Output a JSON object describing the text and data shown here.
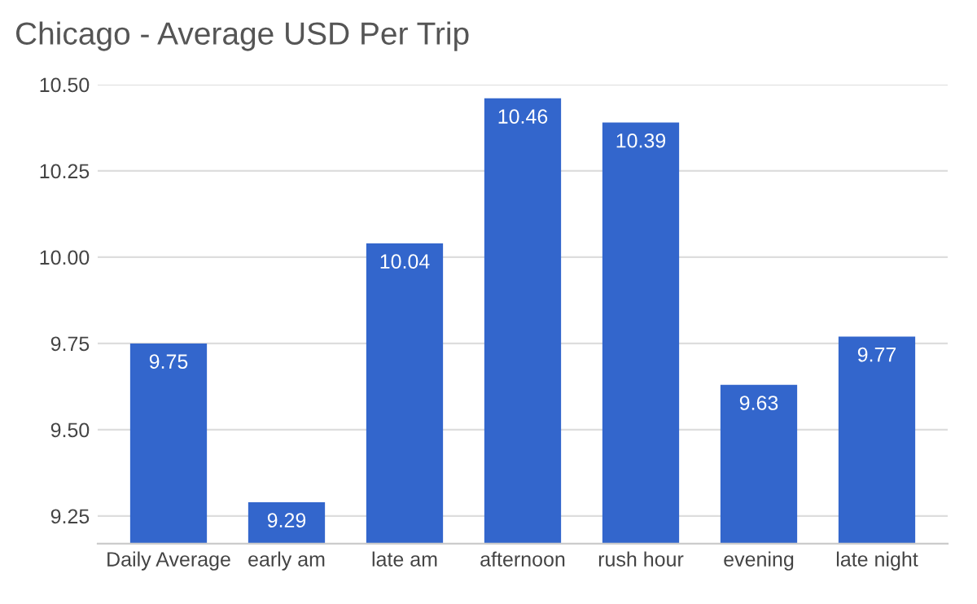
{
  "chart_data": {
    "type": "bar",
    "title": "Chicago - Average USD Per Trip",
    "categories": [
      "Daily Average",
      "early am",
      "late am",
      "afternoon",
      "rush hour",
      "evening",
      "late night"
    ],
    "values": [
      9.75,
      9.29,
      10.04,
      10.46,
      10.39,
      9.63,
      9.77
    ],
    "color": "#3366cc",
    "ylim": [
      9.17,
      10.5
    ],
    "yticks": [
      {
        "value": 9.25,
        "label": "9.25"
      },
      {
        "value": 9.5,
        "label": "9.50"
      },
      {
        "value": 9.75,
        "label": "9.75"
      },
      {
        "value": 10.0,
        "label": "10.00"
      },
      {
        "value": 10.25,
        "label": "10.25"
      },
      {
        "value": 10.5,
        "label": "10.50"
      }
    ],
    "grid": "y",
    "data_labels": true
  }
}
